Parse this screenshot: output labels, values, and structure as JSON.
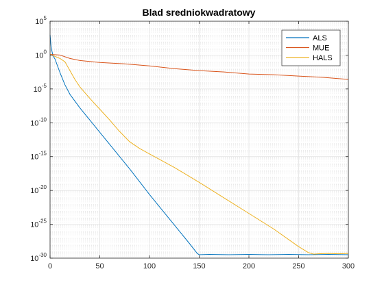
{
  "chart_data": {
    "type": "line",
    "title": "Blad sredniokwadratowy",
    "xlabel": "",
    "ylabel": "",
    "xlim": [
      0,
      300
    ],
    "ylim_log10": [
      -30,
      5
    ],
    "yscale": "log",
    "grid": true,
    "minor_grid": true,
    "legend_position": "top-right",
    "x_ticks": [
      0,
      50,
      100,
      150,
      200,
      250,
      300
    ],
    "y_ticks_exponent": [
      5,
      0,
      -5,
      -10,
      -15,
      -20,
      -25,
      -30
    ],
    "y_tick_base": "10",
    "y_tick_labels": [
      "10^5",
      "10^0",
      "10^-5",
      "10^-10",
      "10^-15",
      "10^-20",
      "10^-25",
      "10^-30"
    ],
    "series": [
      {
        "name": "ALS",
        "color": "#0072BD",
        "x": [
          0,
          1,
          2,
          3,
          5,
          10,
          15,
          20,
          30,
          40,
          50,
          60,
          80,
          100,
          120,
          140,
          148,
          150,
          160,
          180,
          200,
          220,
          240,
          260,
          280,
          300
        ],
        "y_log10": [
          3.0,
          1.3,
          0.5,
          -0.1,
          -0.6,
          -2.6,
          -4.4,
          -5.8,
          -7.8,
          -9.6,
          -11.4,
          -13.2,
          -16.8,
          -20.6,
          -24.2,
          -27.8,
          -29.3,
          -29.5,
          -29.45,
          -29.5,
          -29.45,
          -29.5,
          -29.45,
          -29.5,
          -29.45,
          -29.5
        ]
      },
      {
        "name": "MUE",
        "color": "#D95319",
        "x": [
          0,
          10,
          20,
          30,
          50,
          75,
          100,
          125,
          150,
          175,
          200,
          225,
          250,
          275,
          300
        ],
        "y_log10": [
          0.1,
          0.0,
          -0.5,
          -0.8,
          -1.1,
          -1.3,
          -1.6,
          -2.0,
          -2.3,
          -2.5,
          -2.8,
          -2.9,
          -3.1,
          -3.3,
          -3.6
        ]
      },
      {
        "name": "HALS",
        "color": "#EDB120",
        "x": [
          0,
          5,
          10,
          15,
          20,
          25,
          30,
          40,
          50,
          60,
          70,
          80,
          90,
          100,
          125,
          150,
          175,
          200,
          225,
          250,
          260,
          265,
          270,
          280,
          290,
          300
        ],
        "y_log10": [
          0.1,
          -0.2,
          -0.5,
          -1.0,
          -2.3,
          -3.6,
          -4.7,
          -6.4,
          -8.0,
          -9.6,
          -11.3,
          -12.8,
          -13.8,
          -14.6,
          -16.6,
          -18.8,
          -21.1,
          -23.4,
          -25.7,
          -28.3,
          -29.2,
          -29.4,
          -29.35,
          -29.3,
          -29.35,
          -29.3
        ]
      }
    ]
  }
}
